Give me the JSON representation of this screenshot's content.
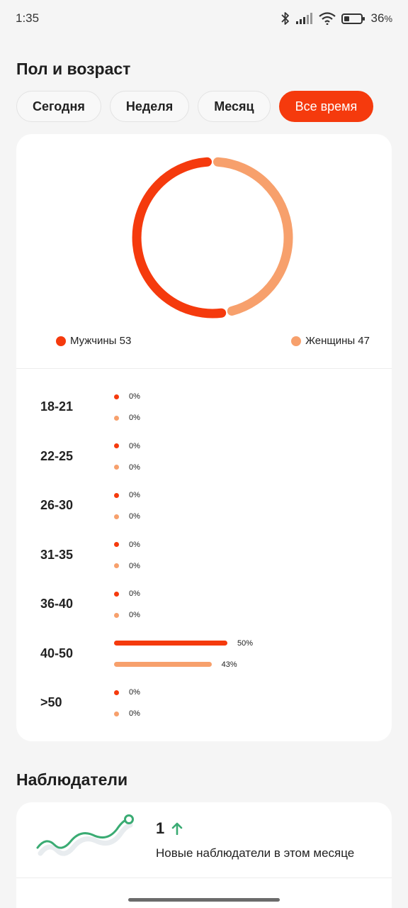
{
  "status": {
    "time": "1:35",
    "battery": "36",
    "battery_unit": "%",
    "battery_level": 0.36
  },
  "gender_age": {
    "title": "Пол и возраст",
    "tabs": [
      {
        "label": "Сегодня",
        "active": false
      },
      {
        "label": "Неделя",
        "active": false
      },
      {
        "label": "Месяц",
        "active": false
      },
      {
        "label": "Все время",
        "active": true
      }
    ],
    "colors": {
      "male": "#f53a0d",
      "female": "#f7a06c"
    },
    "gender": {
      "male": {
        "label": "Мужчины 53",
        "value": 53
      },
      "female": {
        "label": "Женщины 47",
        "value": 47
      }
    },
    "age_groups": [
      {
        "label": "18-21",
        "male": 0,
        "female": 0,
        "male_label": "0%",
        "female_label": "0%"
      },
      {
        "label": "22-25",
        "male": 0,
        "female": 0,
        "male_label": "0%",
        "female_label": "0%"
      },
      {
        "label": "26-30",
        "male": 0,
        "female": 0,
        "male_label": "0%",
        "female_label": "0%"
      },
      {
        "label": "31-35",
        "male": 0,
        "female": 0,
        "male_label": "0%",
        "female_label": "0%"
      },
      {
        "label": "36-40",
        "male": 0,
        "female": 0,
        "male_label": "0%",
        "female_label": "0%"
      },
      {
        "label": "40-50",
        "male": 50,
        "female": 43,
        "male_label": "50%",
        "female_label": "43%"
      },
      {
        "label": ">50",
        "male": 0,
        "female": 0,
        "male_label": "0%",
        "female_label": "0%"
      }
    ]
  },
  "observers": {
    "title": "Наблюдатели",
    "count": "1",
    "trend_icon": "arrow-up-icon",
    "description": "Новые наблюдатели в этом месяце",
    "accent": "#3aab73"
  }
}
